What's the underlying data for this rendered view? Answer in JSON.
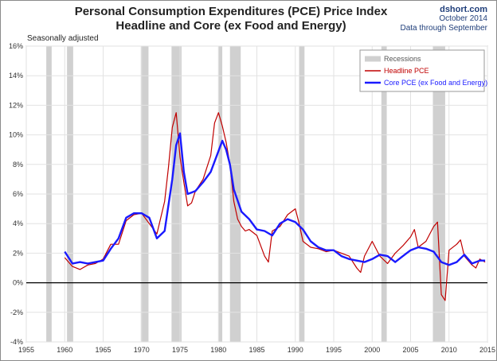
{
  "header": {
    "title_line1": "Personal Consumption Expenditures (PCE) Price Index",
    "title_line2": "Headline and Core (ex Food and Energy)",
    "source_site": "dshort.com",
    "source_date": "October 2014",
    "source_through": "Data through September",
    "note": "Seasonally adjusted"
  },
  "colors": {
    "headline": "#c00000",
    "core": "#1a1aff",
    "recession": "#d0d0d0",
    "zero_line": "#000000"
  },
  "chart_data": {
    "type": "line",
    "title": "Personal Consumption Expenditures (PCE) Price Index — Headline and Core (ex Food and Energy)",
    "xlim": [
      1955,
      2015
    ],
    "ylim": [
      -4,
      16
    ],
    "x_ticks": [
      "1955",
      "1960",
      "1965",
      "1970",
      "1975",
      "1980",
      "1985",
      "1990",
      "1995",
      "2000",
      "2005",
      "2010",
      "2015"
    ],
    "y_ticks": [
      "-4%",
      "-2%",
      "0%",
      "2%",
      "4%",
      "6%",
      "8%",
      "10%",
      "12%",
      "14%",
      "16%"
    ],
    "grid": true,
    "legend_position": "top-right",
    "recessions": [
      [
        1957.6,
        1958.3
      ],
      [
        1960.3,
        1961.1
      ],
      [
        1969.9,
        1970.9
      ],
      [
        1973.9,
        1975.2
      ],
      [
        1980.0,
        1980.5
      ],
      [
        1981.5,
        1982.9
      ],
      [
        1990.5,
        1991.2
      ],
      [
        2001.2,
        2001.9
      ],
      [
        2007.9,
        2009.5
      ]
    ],
    "legend": {
      "recessions": "Recessions",
      "headline": "Headline PCE",
      "core": "Core PCE (ex Food and Energy)"
    },
    "series": [
      {
        "name": "Headline PCE",
        "x": [
          1960,
          1961,
          1962,
          1963,
          1964,
          1965,
          1966,
          1967,
          1968,
          1969,
          1970,
          1971,
          1972,
          1973,
          1973.5,
          1974,
          1974.5,
          1975,
          1975.5,
          1976,
          1976.5,
          1977,
          1978,
          1979,
          1979.5,
          1980,
          1980.5,
          1981,
          1981.5,
          1982,
          1982.5,
          1983,
          1983.5,
          1984,
          1985,
          1986,
          1986.5,
          1987,
          1988,
          1989,
          1990,
          1990.5,
          1991,
          1992,
          1993,
          1994,
          1995,
          1996,
          1997,
          1998,
          1998.5,
          1999,
          2000,
          2001,
          2002,
          2003,
          2004,
          2005,
          2005.5,
          2006,
          2007,
          2008,
          2008.5,
          2009,
          2009.5,
          2010,
          2011,
          2011.5,
          2012,
          2013,
          2013.5,
          2014,
          2014.7
        ],
        "y": [
          1.7,
          1.1,
          0.9,
          1.2,
          1.3,
          1.6,
          2.6,
          2.6,
          4.2,
          4.6,
          4.7,
          4.0,
          3.3,
          5.5,
          7.8,
          10.5,
          11.5,
          8.5,
          6.8,
          5.2,
          5.4,
          6.2,
          7.0,
          8.6,
          10.8,
          11.5,
          10.6,
          9.5,
          8.0,
          5.5,
          4.3,
          3.8,
          3.5,
          3.6,
          3.2,
          1.8,
          1.4,
          3.5,
          3.8,
          4.6,
          5.0,
          4.0,
          2.8,
          2.4,
          2.3,
          2.1,
          2.2,
          2.0,
          1.8,
          1.0,
          0.7,
          1.8,
          2.8,
          1.8,
          1.3,
          2.0,
          2.5,
          3.1,
          3.6,
          2.4,
          2.8,
          3.8,
          4.1,
          -0.8,
          -1.2,
          2.2,
          2.6,
          2.9,
          1.8,
          1.2,
          1.0,
          1.6,
          1.4
        ]
      },
      {
        "name": "Core PCE (ex Food and Energy)",
        "x": [
          1960,
          1961,
          1962,
          1963,
          1964,
          1965,
          1966,
          1967,
          1968,
          1969,
          1970,
          1971,
          1972,
          1973,
          1974,
          1974.5,
          1975,
          1975.5,
          1976,
          1977,
          1978,
          1979,
          1980,
          1980.5,
          1981,
          1981.5,
          1982,
          1983,
          1984,
          1985,
          1986,
          1987,
          1988,
          1989,
          1990,
          1991,
          1992,
          1993,
          1994,
          1995,
          1996,
          1997,
          1998,
          1999,
          2000,
          2001,
          2002,
          2003,
          2004,
          2005,
          2006,
          2007,
          2008,
          2009,
          2010,
          2011,
          2012,
          2013,
          2014,
          2014.7
        ],
        "y": [
          2.1,
          1.3,
          1.4,
          1.3,
          1.4,
          1.5,
          2.3,
          3.0,
          4.4,
          4.7,
          4.7,
          4.4,
          3.0,
          3.5,
          7.0,
          9.3,
          10.1,
          7.5,
          6.0,
          6.2,
          6.8,
          7.5,
          8.9,
          9.6,
          9.0,
          8.0,
          6.3,
          4.8,
          4.3,
          3.6,
          3.5,
          3.2,
          4.0,
          4.3,
          4.1,
          3.6,
          2.8,
          2.4,
          2.2,
          2.2,
          1.8,
          1.6,
          1.5,
          1.4,
          1.6,
          1.9,
          1.8,
          1.4,
          1.8,
          2.2,
          2.4,
          2.3,
          2.1,
          1.4,
          1.2,
          1.4,
          1.9,
          1.3,
          1.5,
          1.5
        ]
      }
    ]
  }
}
